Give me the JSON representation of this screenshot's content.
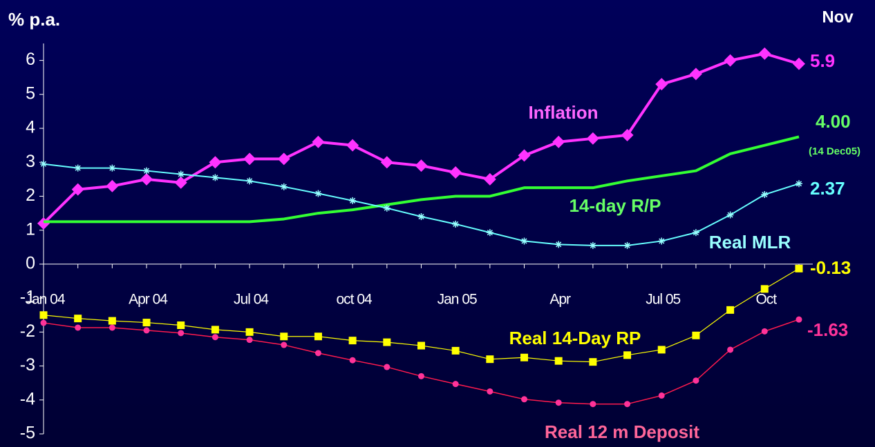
{
  "chart_data": {
    "type": "line",
    "y_label": "% p.a.",
    "categories": [
      "Jan 04",
      null,
      null,
      "Apr 04",
      null,
      null,
      "Jul 04",
      null,
      null,
      "oct 04",
      null,
      null,
      "Jan 05",
      null,
      null,
      "Apr",
      null,
      null,
      "Jul 05",
      null,
      null,
      "Oct",
      null
    ],
    "ylim": [
      -5,
      6.5
    ],
    "yticks": [
      -5,
      -4,
      -3,
      -2,
      -1,
      0,
      1,
      2,
      3,
      4,
      5,
      6
    ],
    "series": [
      {
        "name": "Inflation",
        "color": "#ff33ff",
        "marker": "diamond",
        "values": [
          1.2,
          2.2,
          2.3,
          2.5,
          2.4,
          3.0,
          3.1,
          3.1,
          3.6,
          3.5,
          3.0,
          2.9,
          2.7,
          2.5,
          3.2,
          3.6,
          3.7,
          3.8,
          5.3,
          5.6,
          6.0,
          6.2,
          5.9
        ]
      },
      {
        "name": "14-day R/P",
        "color": "#33ff33",
        "marker": "none",
        "values": [
          1.25,
          1.25,
          1.25,
          1.25,
          1.25,
          1.25,
          1.25,
          1.33,
          1.5,
          1.6,
          1.75,
          1.9,
          2.0,
          2.0,
          2.25,
          2.25,
          2.25,
          2.45,
          2.6,
          2.75,
          3.25,
          3.5,
          3.75
        ]
      },
      {
        "name": "Real MLR",
        "color": "#66ffff",
        "marker": "star",
        "values": [
          2.95,
          2.83,
          2.83,
          2.75,
          2.65,
          2.55,
          2.45,
          2.28,
          2.08,
          1.87,
          1.65,
          1.4,
          1.18,
          0.93,
          0.68,
          0.58,
          0.55,
          0.55,
          0.68,
          0.93,
          1.45,
          2.05,
          2.37
        ]
      },
      {
        "name": "Real 14-Day RP",
        "color": "#ffff00",
        "marker": "square",
        "values": [
          -1.5,
          -1.6,
          -1.67,
          -1.72,
          -1.8,
          -1.93,
          -2.0,
          -2.13,
          -2.13,
          -2.25,
          -2.3,
          -2.4,
          -2.55,
          -2.8,
          -2.75,
          -2.85,
          -2.88,
          -2.68,
          -2.52,
          -2.1,
          -1.35,
          -0.73,
          -0.13
        ]
      },
      {
        "name": "Real 12 m Deposit",
        "color": "#ff1a4d",
        "marker": "circle",
        "values": [
          -1.73,
          -1.87,
          -1.87,
          -1.95,
          -2.03,
          -2.15,
          -2.23,
          -2.38,
          -2.62,
          -2.83,
          -3.03,
          -3.3,
          -3.53,
          -3.75,
          -3.98,
          -4.08,
          -4.12,
          -4.12,
          -3.87,
          -3.43,
          -2.52,
          -1.98,
          -1.63
        ]
      }
    ],
    "annotations": [
      "Nov",
      "5.9",
      "4.00",
      "(14 Dec05)",
      "2.37",
      "-0.13",
      "-1.63"
    ]
  }
}
